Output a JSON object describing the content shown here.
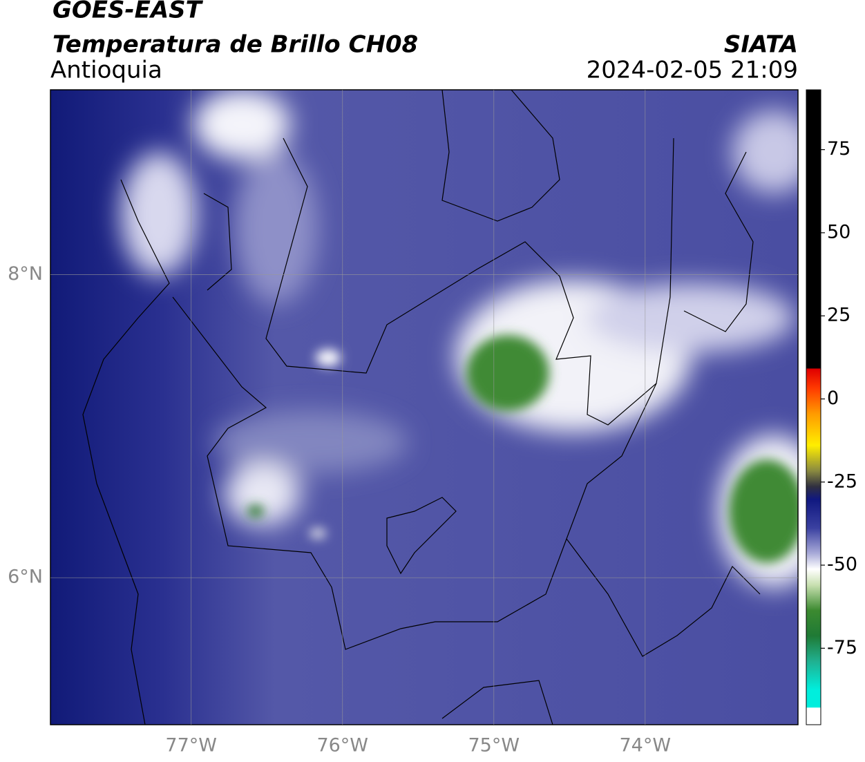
{
  "header": {
    "title": "GOES-EAST",
    "subtitle": "Temperatura de Brillo CH08",
    "region": "Antioquia",
    "source": "SIATA",
    "datetime": "2024-02-05 21:09"
  },
  "map": {
    "xlim": [
      -77.93,
      -72.99
    ],
    "ylim": [
      5.03,
      9.22
    ],
    "xticks": [
      {
        "value": -77,
        "label": "77°W"
      },
      {
        "value": -76,
        "label": "76°W"
      },
      {
        "value": -75,
        "label": "75°W"
      },
      {
        "value": -74,
        "label": "74°W"
      }
    ],
    "yticks": [
      {
        "value": 8,
        "label": "8°N"
      },
      {
        "value": 6,
        "label": "6°N"
      }
    ],
    "grid": true
  },
  "colorbar": {
    "lim": [
      -98,
      93
    ],
    "ticks": [
      75,
      50,
      25,
      0,
      -25,
      -50,
      -75
    ]
  }
}
